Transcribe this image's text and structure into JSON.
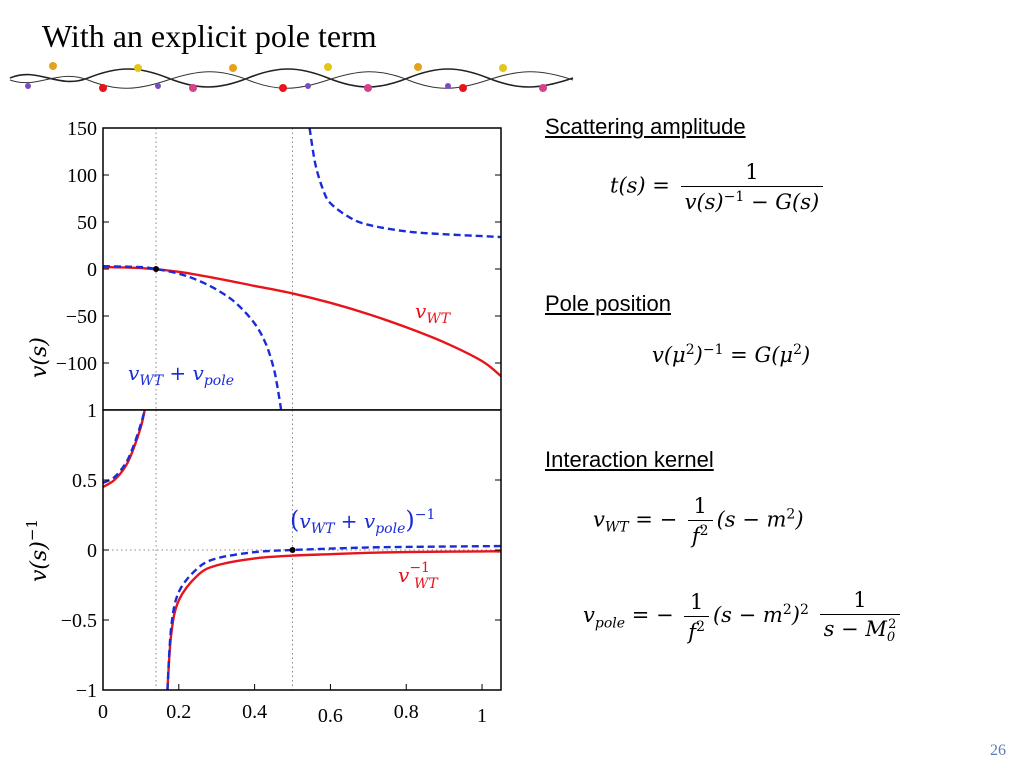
{
  "slide": {
    "title": "With an explicit pole term",
    "page_number": "26"
  },
  "sections": {
    "scattering_heading": "Scattering amplitude",
    "pole_heading": "Pole position",
    "kernel_heading": "Interaction kernel"
  },
  "chart_data": [
    {
      "type": "line",
      "ylabel": "v(s)",
      "xlim": [
        0,
        1.05
      ],
      "ylim": [
        -150,
        150
      ],
      "yticks": [
        "150",
        "100",
        "50",
        "0",
        "−50",
        "−100"
      ],
      "vlines": [
        0.14,
        0.5
      ],
      "grid": "dotted vertical lines",
      "series": [
        {
          "name": "v_WT",
          "color": "#e8141b",
          "style": "solid",
          "x": [
            0,
            0.1,
            0.2,
            0.3,
            0.4,
            0.5,
            0.6,
            0.7,
            0.8,
            0.9,
            1.0,
            1.05
          ],
          "y": [
            2,
            1,
            -3,
            -10,
            -18,
            -26,
            -36,
            -48,
            -62,
            -78,
            -98,
            -114
          ]
        },
        {
          "name": "v_WT + v_pole",
          "color": "#1a2bd8",
          "style": "dashed",
          "x": [
            0,
            0.1,
            0.14,
            0.2,
            0.25,
            0.3,
            0.35,
            0.4,
            0.43,
            0.45,
            0.46,
            0.47
          ],
          "y": [
            3,
            2,
            0,
            -5,
            -12,
            -22,
            -36,
            -58,
            -80,
            -105,
            -125,
            -150
          ]
        },
        {
          "name": "v_WT + v_pole",
          "color": "#1a2bd8",
          "style": "dashed",
          "x": [
            0.545,
            0.56,
            0.58,
            0.6,
            0.65,
            0.7,
            0.8,
            0.9,
            1.0,
            1.05
          ],
          "y": [
            150,
            112,
            85,
            70,
            55,
            47,
            40,
            37,
            35,
            34
          ]
        }
      ],
      "markers": [
        {
          "x": 0.14,
          "y": 0
        }
      ],
      "annotations": [
        "v_WT",
        "v_WT + v_pole"
      ]
    },
    {
      "type": "line",
      "ylabel": "v(s)^−1",
      "xlim": [
        0,
        1.05
      ],
      "ylim": [
        -1,
        1
      ],
      "xticks": [
        "0",
        "0.2",
        "0.4",
        "0.6",
        "0.8",
        "1"
      ],
      "xtick_values": [
        0,
        0.2,
        0.4,
        0.6,
        0.8,
        1.0
      ],
      "yticks": [
        "1",
        "0.5",
        "0",
        "−0.5",
        "−1"
      ],
      "vlines": [
        0.14,
        0.5
      ],
      "grid": "dotted vertical lines and dotted y=0",
      "series": [
        {
          "name": "v_WT^-1",
          "color": "#e8141b",
          "style": "solid",
          "x": [
            0,
            0.03,
            0.06,
            0.08,
            0.1,
            0.11
          ],
          "y": [
            0.45,
            0.5,
            0.6,
            0.72,
            0.88,
            1.0
          ]
        },
        {
          "name": "v_WT^-1",
          "color": "#e8141b",
          "style": "solid",
          "x": [
            0.17,
            0.18,
            0.2,
            0.25,
            0.3,
            0.4,
            0.5,
            0.6,
            0.7,
            0.8,
            1.0,
            1.05
          ],
          "y": [
            -1.0,
            -0.6,
            -0.36,
            -0.18,
            -0.11,
            -0.06,
            -0.04,
            -0.03,
            -0.02,
            -0.015,
            -0.01,
            -0.01
          ]
        },
        {
          "name": "(v_WT + v_pole)^-1",
          "color": "#1a2bd8",
          "style": "dashed",
          "x": [
            0,
            0.03,
            0.06,
            0.08,
            0.1,
            0.11
          ],
          "y": [
            0.48,
            0.52,
            0.62,
            0.74,
            0.9,
            1.0
          ]
        },
        {
          "name": "(v_WT + v_pole)^-1",
          "color": "#1a2bd8",
          "style": "dashed",
          "x": [
            0.17,
            0.18,
            0.2,
            0.25,
            0.3,
            0.4,
            0.5,
            0.6,
            0.7,
            0.8,
            1.0,
            1.05
          ],
          "y": [
            -1.0,
            -0.55,
            -0.3,
            -0.13,
            -0.06,
            -0.015,
            0.0,
            0.01,
            0.018,
            0.022,
            0.027,
            0.028
          ]
        }
      ],
      "markers": [
        {
          "x": 0.5,
          "y": 0
        }
      ],
      "annotations": [
        "(v_WT + v_pole)^−1",
        "v_WT^−1"
      ]
    }
  ]
}
